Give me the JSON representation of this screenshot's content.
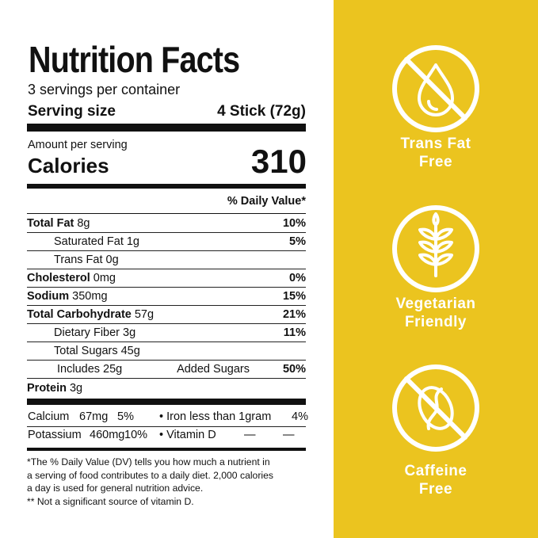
{
  "label": {
    "title": "Nutrition Facts",
    "servings": "3 servings per container",
    "serving_size_label": "Serving size",
    "serving_size": "4 Stick (72g)",
    "amount_per_serving": "Amount per serving",
    "calories_label": "Calories",
    "calories": "310",
    "daily_value_header": "% Daily Value*",
    "nutrients": [
      {
        "name": "Total Fat",
        "amount": "8g",
        "dv": "10%"
      },
      {
        "name": "Saturated Fat",
        "amount": "1g",
        "dv": "5%"
      },
      {
        "name": "Trans Fat",
        "amount": "0g"
      },
      {
        "name": "Cholesterol",
        "amount": "0mg",
        "dv": "0%"
      },
      {
        "name": "Sodium",
        "amount": "350mg",
        "dv": "15%"
      },
      {
        "name": "Total Carbohydrate",
        "amount": "57g",
        "dv": "21%"
      },
      {
        "name": "Dietary Fiber",
        "amount": "3g",
        "dv": "11%"
      },
      {
        "name": "Total Sugars",
        "amount": "45g"
      },
      {
        "name": "Includes 25g",
        "amount": "Added Sugars",
        "dv": "50%"
      },
      {
        "name": "Protein",
        "amount": "3g"
      }
    ],
    "minerals": [
      {
        "name": "Calcium",
        "amount": "67mg",
        "dv": "5%",
        "name2": "• Iron less than 1gram",
        "dv2": "4%"
      },
      {
        "name": "Potassium",
        "amount": "460mg",
        "dv": "10%",
        "name2": "• Vitamin D",
        "amount2": "—",
        "dv2": "—"
      }
    ],
    "footnote": [
      "*The % Daily Value (DV) tells you how much a nutrient in",
      "a serving of food contributes to a daily diet. 2,000 calories",
      "a day is used for general nutrition advice.",
      "** Not a significant source of vitamin D."
    ]
  },
  "badges": [
    {
      "lines": [
        "Trans Fat",
        "Free"
      ]
    },
    {
      "lines": [
        "Vegetarian",
        "Friendly"
      ]
    },
    {
      "lines": [
        "Caffeine",
        "Free"
      ]
    }
  ]
}
